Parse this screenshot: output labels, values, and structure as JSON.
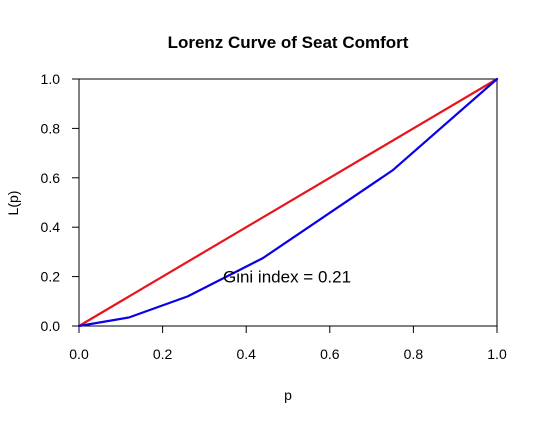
{
  "chart_data": {
    "type": "line",
    "title": "Lorenz Curve of Seat Comfort",
    "xlabel": "p",
    "ylabel": "L(p)",
    "xlim": [
      0,
      1
    ],
    "ylim": [
      0,
      1
    ],
    "x_ticks": [
      0.0,
      0.2,
      0.4,
      0.6,
      0.8,
      1.0
    ],
    "y_ticks": [
      0.0,
      0.2,
      0.4,
      0.6,
      0.8,
      1.0
    ],
    "x_tick_labels": [
      "0.0",
      "0.2",
      "0.4",
      "0.6",
      "0.8",
      "1.0"
    ],
    "y_tick_labels": [
      "0.0",
      "0.2",
      "0.4",
      "0.6",
      "0.8",
      "1.0"
    ],
    "grid": false,
    "series": [
      {
        "color": "#e8141b",
        "x": [
          0,
          1
        ],
        "y": [
          0,
          1
        ]
      },
      {
        "color": "#0b00e6",
        "x": [
          0,
          0.12,
          0.26,
          0.44,
          0.75,
          1.0
        ],
        "y": [
          0,
          0.035,
          0.12,
          0.275,
          0.63,
          1.0
        ]
      }
    ],
    "annotations": [
      {
        "text": "Gini index = 0.21",
        "x": 0.5,
        "y": 0.2
      }
    ]
  }
}
